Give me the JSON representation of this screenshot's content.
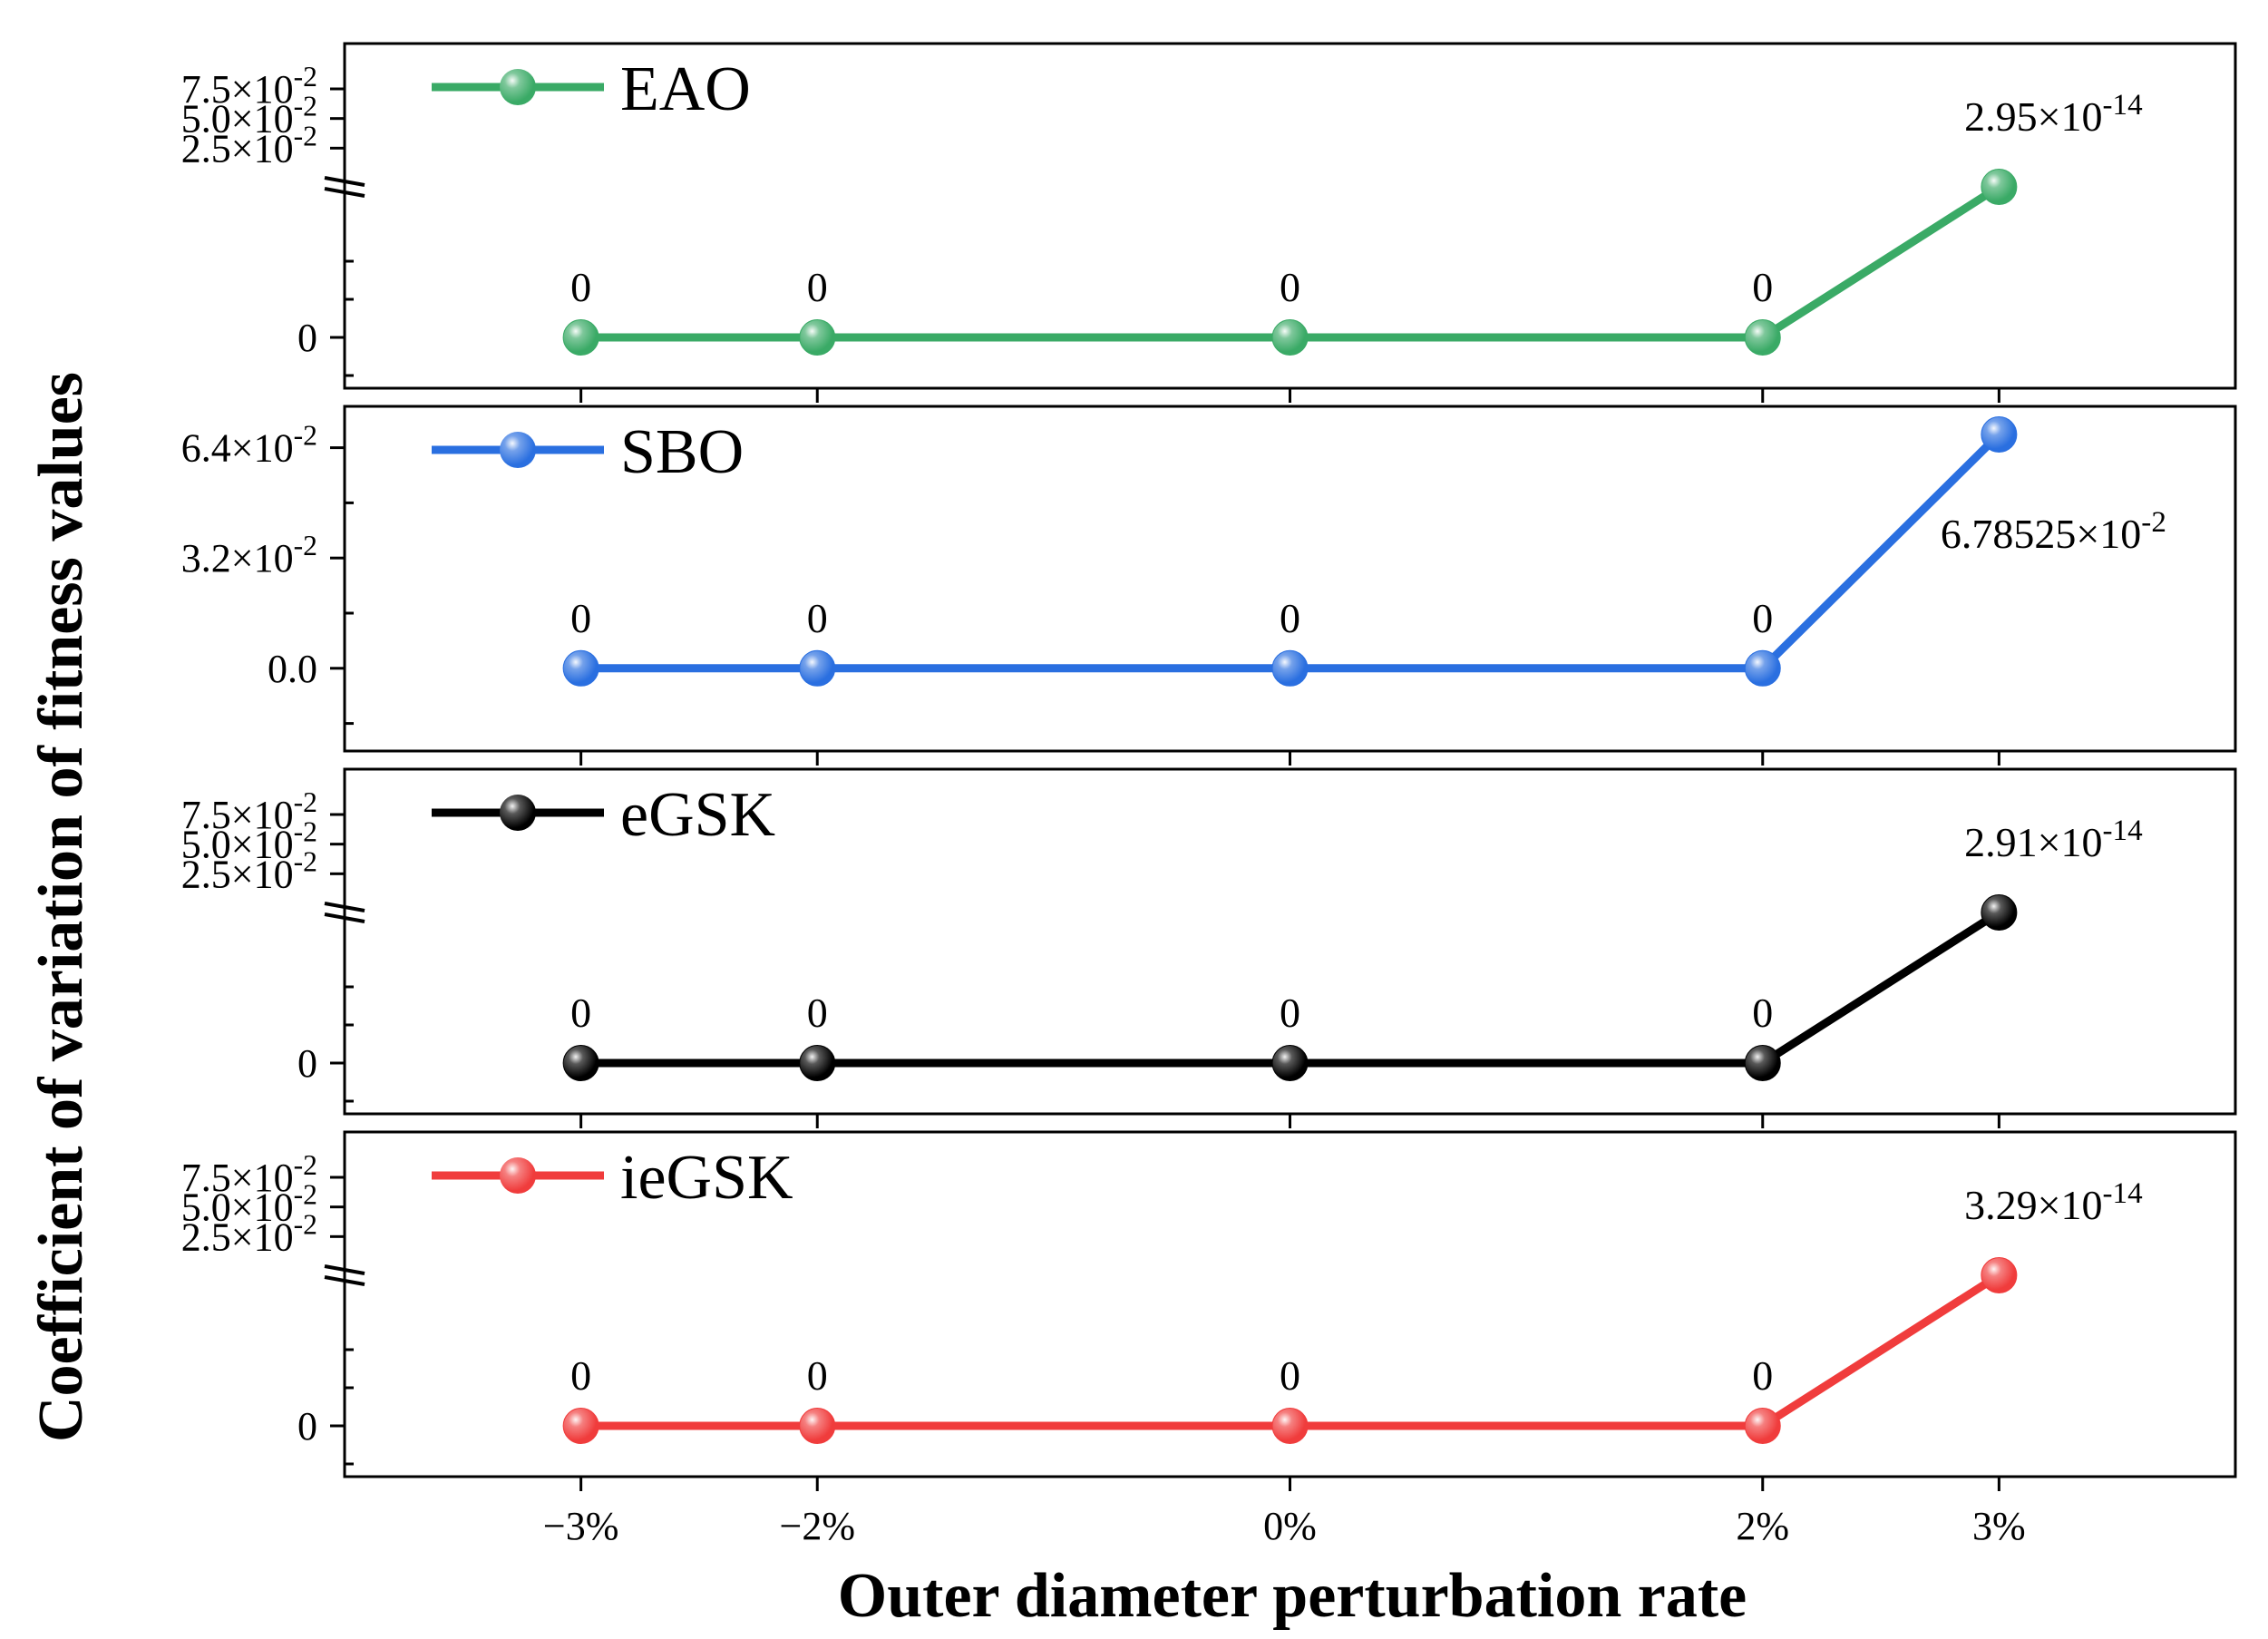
{
  "chart_data": {
    "type": "line",
    "xlabel": "Outer diameter perturbation rate",
    "ylabel": "Coefficient of variation of fitness values",
    "categories": [
      "−3%",
      "−2%",
      "0%",
      "2%",
      "3%"
    ],
    "x": [
      -3,
      -2,
      0,
      2,
      3
    ],
    "xlim": [
      -4.0,
      4.0
    ],
    "panels": [
      {
        "name": "EAO",
        "color": "#3aaa66",
        "broken_axis": true,
        "values": [
          0,
          0,
          0,
          0,
          2.95e-14
        ],
        "point_labels": [
          "0",
          "0",
          "0",
          "0",
          "2.95×10-14"
        ],
        "label_parts": [
          {
            "base": "0",
            "exp": ""
          },
          {
            "base": "0",
            "exp": ""
          },
          {
            "base": "0",
            "exp": ""
          },
          {
            "base": "0",
            "exp": ""
          },
          {
            "base": "2.95×10",
            "exp": "-14"
          }
        ],
        "lower_ticks": [
          {
            "value": 0,
            "base": "0",
            "exp": ""
          }
        ],
        "upper_ticks": [
          {
            "value": 0.075,
            "base": "7.5×10",
            "exp": "-2"
          },
          {
            "value": 0.05,
            "base": "5.0×10",
            "exp": "-2"
          },
          {
            "value": 0.025,
            "base": "2.5×10",
            "exp": "-2"
          }
        ]
      },
      {
        "name": "SBO",
        "color": "#2a6fe0",
        "broken_axis": false,
        "values": [
          0,
          0,
          0,
          0,
          0.0678525
        ],
        "point_labels": [
          "0",
          "0",
          "0",
          "0",
          "6.78525×10-2"
        ],
        "label_parts": [
          {
            "base": "0",
            "exp": ""
          },
          {
            "base": "0",
            "exp": ""
          },
          {
            "base": "0",
            "exp": ""
          },
          {
            "base": "0",
            "exp": ""
          },
          {
            "base": "6.78525×10",
            "exp": "-2"
          }
        ],
        "ylim": [
          -0.024,
          0.076
        ],
        "ticks": [
          {
            "value": 0.064,
            "base": "6.4×10",
            "exp": "-2"
          },
          {
            "value": 0.032,
            "base": "3.2×10",
            "exp": "-2"
          },
          {
            "value": 0.0,
            "base": "0.0",
            "exp": ""
          }
        ]
      },
      {
        "name": "eGSK",
        "color": "#000000",
        "broken_axis": true,
        "values": [
          0,
          0,
          0,
          0,
          2.91e-14
        ],
        "point_labels": [
          "0",
          "0",
          "0",
          "0",
          "2.91×10-14"
        ],
        "label_parts": [
          {
            "base": "0",
            "exp": ""
          },
          {
            "base": "0",
            "exp": ""
          },
          {
            "base": "0",
            "exp": ""
          },
          {
            "base": "0",
            "exp": ""
          },
          {
            "base": "2.91×10",
            "exp": "-14"
          }
        ],
        "lower_ticks": [
          {
            "value": 0,
            "base": "0",
            "exp": ""
          }
        ],
        "upper_ticks": [
          {
            "value": 0.075,
            "base": "7.5×10",
            "exp": "-2"
          },
          {
            "value": 0.05,
            "base": "5.0×10",
            "exp": "-2"
          },
          {
            "value": 0.025,
            "base": "2.5×10",
            "exp": "-2"
          }
        ]
      },
      {
        "name": "ieGSK",
        "color": "#f03c3c",
        "broken_axis": true,
        "values": [
          0,
          0,
          0,
          0,
          3.29e-14
        ],
        "point_labels": [
          "0",
          "0",
          "0",
          "0",
          "3.29×10-14"
        ],
        "label_parts": [
          {
            "base": "0",
            "exp": ""
          },
          {
            "base": "0",
            "exp": ""
          },
          {
            "base": "0",
            "exp": ""
          },
          {
            "base": "0",
            "exp": ""
          },
          {
            "base": "3.29×10",
            "exp": "-14"
          }
        ],
        "lower_ticks": [
          {
            "value": 0,
            "base": "0",
            "exp": ""
          }
        ],
        "upper_ticks": [
          {
            "value": 0.075,
            "base": "7.5×10",
            "exp": "-2"
          },
          {
            "value": 0.05,
            "base": "5.0×10",
            "exp": "-2"
          },
          {
            "value": 0.025,
            "base": "2.5×10",
            "exp": "-2"
          }
        ]
      }
    ]
  }
}
